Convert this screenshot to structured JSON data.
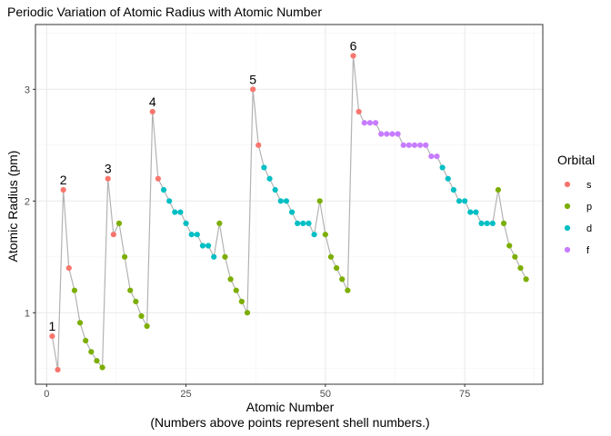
{
  "chart_data": {
    "type": "line",
    "title": "Periodic Variation of Atomic Radius with Atomic Number",
    "xlabel": "Atomic Number",
    "xlabel_note": "(Numbers above points represent shell numbers.)",
    "ylabel": "Atomic Radius (pm)",
    "xlim": [
      -2,
      89
    ],
    "ylim": [
      0.36,
      3.58
    ],
    "x_ticks": [
      0,
      25,
      50,
      75
    ],
    "y_ticks": [
      1,
      2,
      3
    ],
    "grid": true,
    "legend": {
      "title": "Orbital",
      "position": "right",
      "entries": [
        {
          "label": "s",
          "color": "#F8766D"
        },
        {
          "label": "p",
          "color": "#7CAE00"
        },
        {
          "label": "d",
          "color": "#00BFC4"
        },
        {
          "label": "f",
          "color": "#C77CFF"
        }
      ]
    },
    "line_color": "#b3b3b3",
    "points": [
      {
        "x": 1,
        "y": 0.79,
        "orbital": "s"
      },
      {
        "x": 2,
        "y": 0.49,
        "orbital": "s"
      },
      {
        "x": 3,
        "y": 2.1,
        "orbital": "s"
      },
      {
        "x": 4,
        "y": 1.4,
        "orbital": "s"
      },
      {
        "x": 5,
        "y": 1.2,
        "orbital": "p"
      },
      {
        "x": 6,
        "y": 0.91,
        "orbital": "p"
      },
      {
        "x": 7,
        "y": 0.75,
        "orbital": "p"
      },
      {
        "x": 8,
        "y": 0.65,
        "orbital": "p"
      },
      {
        "x": 9,
        "y": 0.57,
        "orbital": "p"
      },
      {
        "x": 10,
        "y": 0.51,
        "orbital": "p"
      },
      {
        "x": 11,
        "y": 2.2,
        "orbital": "s"
      },
      {
        "x": 12,
        "y": 1.7,
        "orbital": "s"
      },
      {
        "x": 13,
        "y": 1.8,
        "orbital": "p"
      },
      {
        "x": 14,
        "y": 1.5,
        "orbital": "p"
      },
      {
        "x": 15,
        "y": 1.2,
        "orbital": "p"
      },
      {
        "x": 16,
        "y": 1.1,
        "orbital": "p"
      },
      {
        "x": 17,
        "y": 0.97,
        "orbital": "p"
      },
      {
        "x": 18,
        "y": 0.88,
        "orbital": "p"
      },
      {
        "x": 19,
        "y": 2.8,
        "orbital": "s"
      },
      {
        "x": 20,
        "y": 2.2,
        "orbital": "s"
      },
      {
        "x": 21,
        "y": 2.1,
        "orbital": "d"
      },
      {
        "x": 22,
        "y": 2.0,
        "orbital": "d"
      },
      {
        "x": 23,
        "y": 1.9,
        "orbital": "d"
      },
      {
        "x": 24,
        "y": 1.9,
        "orbital": "d"
      },
      {
        "x": 25,
        "y": 1.8,
        "orbital": "d"
      },
      {
        "x": 26,
        "y": 1.7,
        "orbital": "d"
      },
      {
        "x": 27,
        "y": 1.7,
        "orbital": "d"
      },
      {
        "x": 28,
        "y": 1.6,
        "orbital": "d"
      },
      {
        "x": 29,
        "y": 1.6,
        "orbital": "d"
      },
      {
        "x": 30,
        "y": 1.5,
        "orbital": "d"
      },
      {
        "x": 31,
        "y": 1.8,
        "orbital": "p"
      },
      {
        "x": 32,
        "y": 1.5,
        "orbital": "p"
      },
      {
        "x": 33,
        "y": 1.3,
        "orbital": "p"
      },
      {
        "x": 34,
        "y": 1.2,
        "orbital": "p"
      },
      {
        "x": 35,
        "y": 1.1,
        "orbital": "p"
      },
      {
        "x": 36,
        "y": 1.0,
        "orbital": "p"
      },
      {
        "x": 37,
        "y": 3.0,
        "orbital": "s"
      },
      {
        "x": 38,
        "y": 2.5,
        "orbital": "s"
      },
      {
        "x": 39,
        "y": 2.3,
        "orbital": "d"
      },
      {
        "x": 40,
        "y": 2.2,
        "orbital": "d"
      },
      {
        "x": 41,
        "y": 2.1,
        "orbital": "d"
      },
      {
        "x": 42,
        "y": 2.0,
        "orbital": "d"
      },
      {
        "x": 43,
        "y": 2.0,
        "orbital": "d"
      },
      {
        "x": 44,
        "y": 1.9,
        "orbital": "d"
      },
      {
        "x": 45,
        "y": 1.8,
        "orbital": "d"
      },
      {
        "x": 46,
        "y": 1.8,
        "orbital": "d"
      },
      {
        "x": 47,
        "y": 1.8,
        "orbital": "d"
      },
      {
        "x": 48,
        "y": 1.7,
        "orbital": "d"
      },
      {
        "x": 49,
        "y": 2.0,
        "orbital": "p"
      },
      {
        "x": 50,
        "y": 1.7,
        "orbital": "p"
      },
      {
        "x": 51,
        "y": 1.5,
        "orbital": "p"
      },
      {
        "x": 52,
        "y": 1.4,
        "orbital": "p"
      },
      {
        "x": 53,
        "y": 1.3,
        "orbital": "p"
      },
      {
        "x": 54,
        "y": 1.2,
        "orbital": "p"
      },
      {
        "x": 55,
        "y": 3.3,
        "orbital": "s"
      },
      {
        "x": 56,
        "y": 2.8,
        "orbital": "s"
      },
      {
        "x": 57,
        "y": 2.7,
        "orbital": "f"
      },
      {
        "x": 58,
        "y": 2.7,
        "orbital": "f"
      },
      {
        "x": 59,
        "y": 2.7,
        "orbital": "f"
      },
      {
        "x": 60,
        "y": 2.6,
        "orbital": "f"
      },
      {
        "x": 61,
        "y": 2.6,
        "orbital": "f"
      },
      {
        "x": 62,
        "y": 2.6,
        "orbital": "f"
      },
      {
        "x": 63,
        "y": 2.6,
        "orbital": "f"
      },
      {
        "x": 64,
        "y": 2.5,
        "orbital": "f"
      },
      {
        "x": 65,
        "y": 2.5,
        "orbital": "f"
      },
      {
        "x": 66,
        "y": 2.5,
        "orbital": "f"
      },
      {
        "x": 67,
        "y": 2.5,
        "orbital": "f"
      },
      {
        "x": 68,
        "y": 2.5,
        "orbital": "f"
      },
      {
        "x": 69,
        "y": 2.4,
        "orbital": "f"
      },
      {
        "x": 70,
        "y": 2.4,
        "orbital": "f"
      },
      {
        "x": 71,
        "y": 2.3,
        "orbital": "d"
      },
      {
        "x": 72,
        "y": 2.2,
        "orbital": "d"
      },
      {
        "x": 73,
        "y": 2.1,
        "orbital": "d"
      },
      {
        "x": 74,
        "y": 2.0,
        "orbital": "d"
      },
      {
        "x": 75,
        "y": 2.0,
        "orbital": "d"
      },
      {
        "x": 76,
        "y": 1.9,
        "orbital": "d"
      },
      {
        "x": 77,
        "y": 1.9,
        "orbital": "d"
      },
      {
        "x": 78,
        "y": 1.8,
        "orbital": "d"
      },
      {
        "x": 79,
        "y": 1.8,
        "orbital": "d"
      },
      {
        "x": 80,
        "y": 1.8,
        "orbital": "d"
      },
      {
        "x": 81,
        "y": 2.1,
        "orbital": "p"
      },
      {
        "x": 82,
        "y": 1.8,
        "orbital": "p"
      },
      {
        "x": 83,
        "y": 1.6,
        "orbital": "p"
      },
      {
        "x": 84,
        "y": 1.5,
        "orbital": "p"
      },
      {
        "x": 85,
        "y": 1.4,
        "orbital": "p"
      },
      {
        "x": 86,
        "y": 1.3,
        "orbital": "p"
      }
    ],
    "shell_labels": [
      {
        "x": 1,
        "y": 0.79,
        "label": "1"
      },
      {
        "x": 3,
        "y": 2.1,
        "label": "2"
      },
      {
        "x": 11,
        "y": 2.2,
        "label": "3"
      },
      {
        "x": 19,
        "y": 2.8,
        "label": "4"
      },
      {
        "x": 37,
        "y": 3.0,
        "label": "5"
      },
      {
        "x": 55,
        "y": 3.3,
        "label": "6"
      }
    ]
  }
}
